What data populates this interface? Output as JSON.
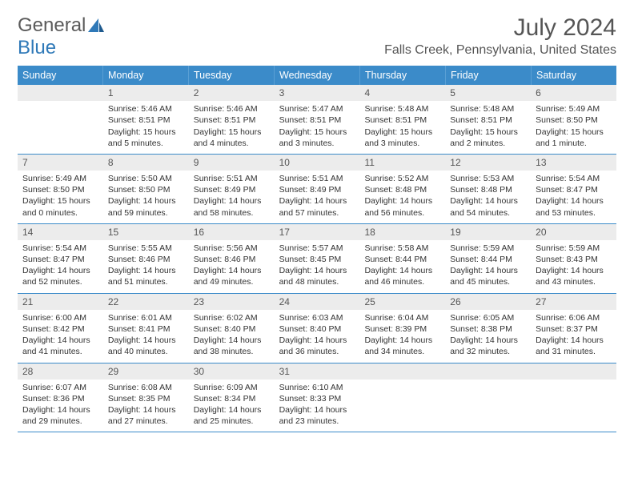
{
  "logo": {
    "text1": "General",
    "text2": "Blue"
  },
  "title": "July 2024",
  "location": "Falls Creek, Pennsylvania, United States",
  "colors": {
    "header_bg": "#3b8bc9",
    "header_text": "#ffffff",
    "daynum_bg": "#ececec",
    "text": "#333333",
    "rule": "#3b8bc9",
    "logo_accent": "#2f79b8"
  },
  "days_of_week": [
    "Sunday",
    "Monday",
    "Tuesday",
    "Wednesday",
    "Thursday",
    "Friday",
    "Saturday"
  ],
  "first_weekday_index": 1,
  "days": [
    {
      "n": 1,
      "sunrise": "5:46 AM",
      "sunset": "8:51 PM",
      "daylight": "15 hours and 5 minutes."
    },
    {
      "n": 2,
      "sunrise": "5:46 AM",
      "sunset": "8:51 PM",
      "daylight": "15 hours and 4 minutes."
    },
    {
      "n": 3,
      "sunrise": "5:47 AM",
      "sunset": "8:51 PM",
      "daylight": "15 hours and 3 minutes."
    },
    {
      "n": 4,
      "sunrise": "5:48 AM",
      "sunset": "8:51 PM",
      "daylight": "15 hours and 3 minutes."
    },
    {
      "n": 5,
      "sunrise": "5:48 AM",
      "sunset": "8:51 PM",
      "daylight": "15 hours and 2 minutes."
    },
    {
      "n": 6,
      "sunrise": "5:49 AM",
      "sunset": "8:50 PM",
      "daylight": "15 hours and 1 minute."
    },
    {
      "n": 7,
      "sunrise": "5:49 AM",
      "sunset": "8:50 PM",
      "daylight": "15 hours and 0 minutes."
    },
    {
      "n": 8,
      "sunrise": "5:50 AM",
      "sunset": "8:50 PM",
      "daylight": "14 hours and 59 minutes."
    },
    {
      "n": 9,
      "sunrise": "5:51 AM",
      "sunset": "8:49 PM",
      "daylight": "14 hours and 58 minutes."
    },
    {
      "n": 10,
      "sunrise": "5:51 AM",
      "sunset": "8:49 PM",
      "daylight": "14 hours and 57 minutes."
    },
    {
      "n": 11,
      "sunrise": "5:52 AM",
      "sunset": "8:48 PM",
      "daylight": "14 hours and 56 minutes."
    },
    {
      "n": 12,
      "sunrise": "5:53 AM",
      "sunset": "8:48 PM",
      "daylight": "14 hours and 54 minutes."
    },
    {
      "n": 13,
      "sunrise": "5:54 AM",
      "sunset": "8:47 PM",
      "daylight": "14 hours and 53 minutes."
    },
    {
      "n": 14,
      "sunrise": "5:54 AM",
      "sunset": "8:47 PM",
      "daylight": "14 hours and 52 minutes."
    },
    {
      "n": 15,
      "sunrise": "5:55 AM",
      "sunset": "8:46 PM",
      "daylight": "14 hours and 51 minutes."
    },
    {
      "n": 16,
      "sunrise": "5:56 AM",
      "sunset": "8:46 PM",
      "daylight": "14 hours and 49 minutes."
    },
    {
      "n": 17,
      "sunrise": "5:57 AM",
      "sunset": "8:45 PM",
      "daylight": "14 hours and 48 minutes."
    },
    {
      "n": 18,
      "sunrise": "5:58 AM",
      "sunset": "8:44 PM",
      "daylight": "14 hours and 46 minutes."
    },
    {
      "n": 19,
      "sunrise": "5:59 AM",
      "sunset": "8:44 PM",
      "daylight": "14 hours and 45 minutes."
    },
    {
      "n": 20,
      "sunrise": "5:59 AM",
      "sunset": "8:43 PM",
      "daylight": "14 hours and 43 minutes."
    },
    {
      "n": 21,
      "sunrise": "6:00 AM",
      "sunset": "8:42 PM",
      "daylight": "14 hours and 41 minutes."
    },
    {
      "n": 22,
      "sunrise": "6:01 AM",
      "sunset": "8:41 PM",
      "daylight": "14 hours and 40 minutes."
    },
    {
      "n": 23,
      "sunrise": "6:02 AM",
      "sunset": "8:40 PM",
      "daylight": "14 hours and 38 minutes."
    },
    {
      "n": 24,
      "sunrise": "6:03 AM",
      "sunset": "8:40 PM",
      "daylight": "14 hours and 36 minutes."
    },
    {
      "n": 25,
      "sunrise": "6:04 AM",
      "sunset": "8:39 PM",
      "daylight": "14 hours and 34 minutes."
    },
    {
      "n": 26,
      "sunrise": "6:05 AM",
      "sunset": "8:38 PM",
      "daylight": "14 hours and 32 minutes."
    },
    {
      "n": 27,
      "sunrise": "6:06 AM",
      "sunset": "8:37 PM",
      "daylight": "14 hours and 31 minutes."
    },
    {
      "n": 28,
      "sunrise": "6:07 AM",
      "sunset": "8:36 PM",
      "daylight": "14 hours and 29 minutes."
    },
    {
      "n": 29,
      "sunrise": "6:08 AM",
      "sunset": "8:35 PM",
      "daylight": "14 hours and 27 minutes."
    },
    {
      "n": 30,
      "sunrise": "6:09 AM",
      "sunset": "8:34 PM",
      "daylight": "14 hours and 25 minutes."
    },
    {
      "n": 31,
      "sunrise": "6:10 AM",
      "sunset": "8:33 PM",
      "daylight": "14 hours and 23 minutes."
    }
  ],
  "labels": {
    "sunrise": "Sunrise:",
    "sunset": "Sunset:",
    "daylight": "Daylight:"
  }
}
